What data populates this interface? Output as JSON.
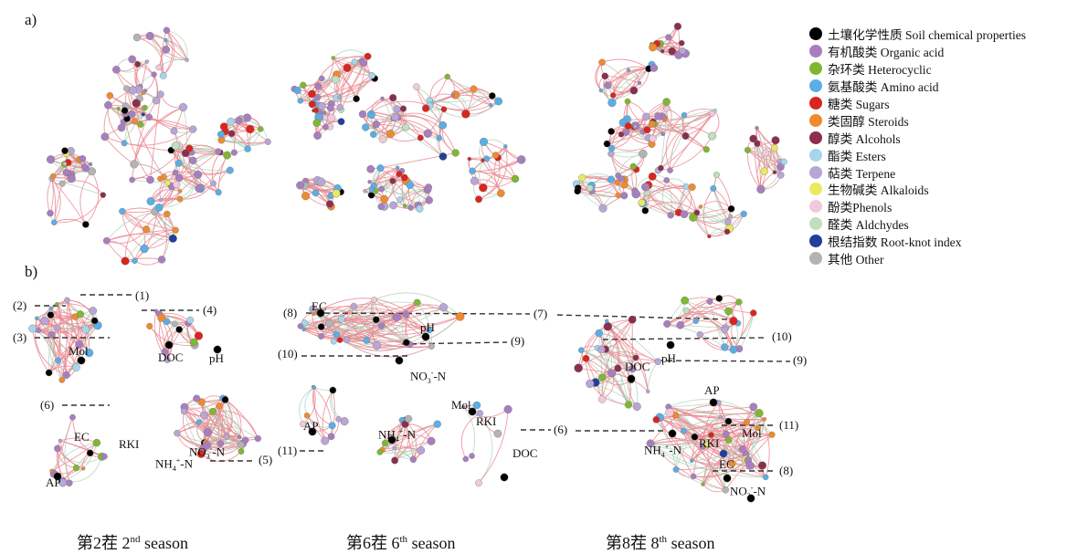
{
  "panels": {
    "a": "a)",
    "b": "b)"
  },
  "legend": [
    {
      "label": "土壤化学性质 Soil chemical properties",
      "color": "#000000"
    },
    {
      "label": "有机酸类 Organic acid",
      "color": "#a77fbf"
    },
    {
      "label": "杂环类 Heterocyclic",
      "color": "#7fb82e"
    },
    {
      "label": "氨基酸类 Amino acid",
      "color": "#5aaee6"
    },
    {
      "label": "糖类 Sugars",
      "color": "#d8261f"
    },
    {
      "label": "类固醇 Steroids",
      "color": "#f08a2c"
    },
    {
      "label": "醇类 Alcohols",
      "color": "#8b2e4f"
    },
    {
      "label": "酯类 Esters",
      "color": "#a5d6ea"
    },
    {
      "label": "萜类 Terpene",
      "color": "#b7a6d6"
    },
    {
      "label": "生物碱类 Alkaloids",
      "color": "#e8ea5f"
    },
    {
      "label": "酚类Phenols",
      "color": "#f2c9dc"
    },
    {
      "label": "醛类 Aldchydes",
      "color": "#bfdfbf"
    },
    {
      "label": "根结指数 Root-knot index",
      "color": "#1f3f99"
    },
    {
      "label": "其他 Other",
      "color": "#b3b3b3"
    }
  ],
  "captions": [
    {
      "cn": "第2茬",
      "num": "2",
      "sup": "nd",
      "en": "season"
    },
    {
      "cn": "第6茬",
      "num": "6",
      "sup": "th",
      "en": "season"
    },
    {
      "cn": "第8茬",
      "num": "8",
      "sup": "th",
      "en": "season"
    }
  ],
  "season2": {
    "nodes": [
      "Mol",
      "DOC",
      "pH",
      "EC",
      "RKI",
      "AP"
    ],
    "nh4": {
      "base": "NH",
      "sub": "4",
      "sup": "+",
      "tail": "-N"
    },
    "no3": {
      "base": "NO",
      "sub": "3",
      "sup": "-",
      "tail": "-N"
    },
    "callouts": [
      "(1)",
      "(2)",
      "(3)",
      "(4)",
      "(5)",
      "(6)"
    ]
  },
  "season6": {
    "nodes": [
      "EC",
      "pH",
      "AP",
      "Mol",
      "RKI",
      "DOC"
    ],
    "nh4": {
      "base": "NH",
      "sub": "4",
      "sup": "+",
      "tail": "-N"
    },
    "no3": {
      "base": "NO",
      "sub": "3",
      "sup": "-",
      "tail": "-N"
    },
    "callouts": [
      "(7)",
      "(8)",
      "(9)",
      "(10)",
      "(11)",
      "(6)"
    ]
  },
  "season8": {
    "nodes": [
      "DOC",
      "pH",
      "AP",
      "Mol",
      "RKI",
      "EC"
    ],
    "nh4": {
      "base": "NH",
      "sub": "4",
      "sup": "+",
      "tail": "-N"
    },
    "no3": {
      "base": "NO",
      "sub": "3",
      "sup": "-",
      "tail": "-N"
    },
    "callouts": [
      "(10)",
      "(9)",
      "(11)",
      "(8)"
    ]
  }
}
